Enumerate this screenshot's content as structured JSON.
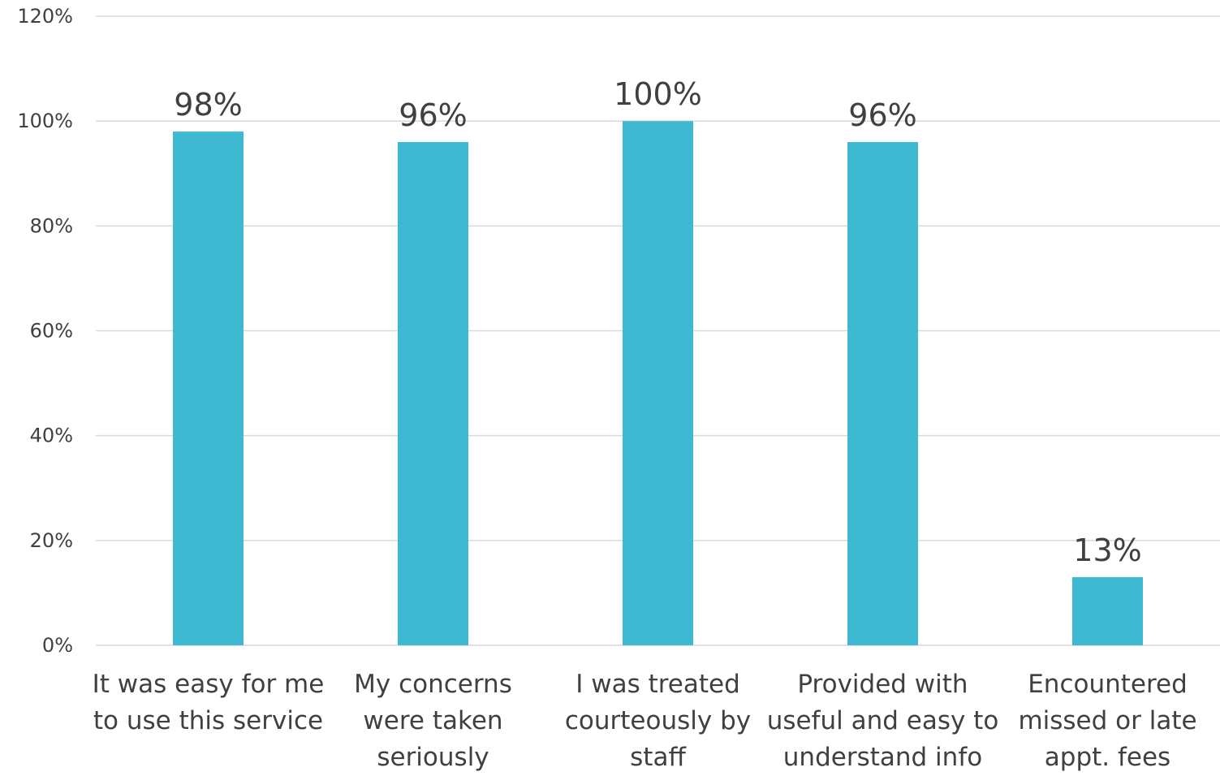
{
  "chart_data": {
    "type": "bar",
    "categories": [
      [
        "It was easy for me",
        "to use this service"
      ],
      [
        "My concerns",
        "were taken",
        "seriously"
      ],
      [
        "I was treated",
        "courteously by",
        "staff"
      ],
      [
        "Provided with",
        "useful and easy to",
        "understand info"
      ],
      [
        "Encountered",
        "missed or late",
        "appt. fees"
      ]
    ],
    "values": [
      98,
      96,
      100,
      96,
      13
    ],
    "data_labels": [
      "98%",
      "96%",
      "100%",
      "96%",
      "13%"
    ],
    "yticks": [
      0,
      20,
      40,
      60,
      80,
      100,
      120
    ],
    "ytick_labels": [
      "0%",
      "20%",
      "40%",
      "60%",
      "80%",
      "100%",
      "120%"
    ],
    "ylim": [
      0,
      120
    ],
    "grid": true,
    "legend": "none",
    "colors": {
      "bar": "#3fb8d1",
      "grid": "#d9d9d9",
      "text": "#404040"
    }
  }
}
